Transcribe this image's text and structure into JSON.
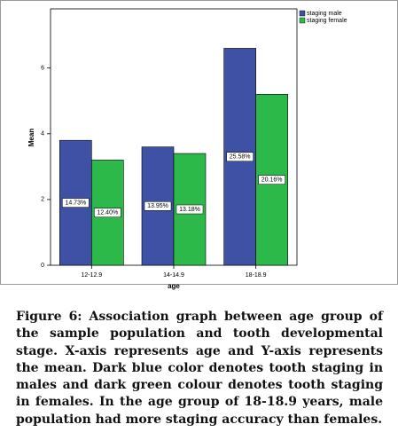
{
  "chart_data": {
    "type": "bar",
    "categories": [
      "12-12.9",
      "14-14.9",
      "18-18.9"
    ],
    "series": [
      {
        "name": "staging male",
        "color": "#3f51a5",
        "values": [
          3.8,
          3.6,
          6.6
        ],
        "percent_labels": [
          "14.73%",
          "13.95%",
          "25.58%"
        ]
      },
      {
        "name": "staging female",
        "color": "#2db84a",
        "values": [
          3.2,
          3.4,
          5.2
        ],
        "percent_labels": [
          "12.40%",
          "13.18%",
          "20.16%"
        ]
      }
    ],
    "ylim": [
      0,
      7.8
    ],
    "yticks": [
      0,
      2,
      4,
      6
    ],
    "y_label": "Mean",
    "x_label": "age",
    "legend": "top-right"
  },
  "caption": "Figure 6: Association graph between age group of the sample population and tooth developmental stage. X-axis represents age and Y-axis represents the mean. Dark blue color denotes tooth staging in males and dark green colour denotes tooth staging in females. In the age group of 18-18.9 years, male population had more staging accuracy than females."
}
